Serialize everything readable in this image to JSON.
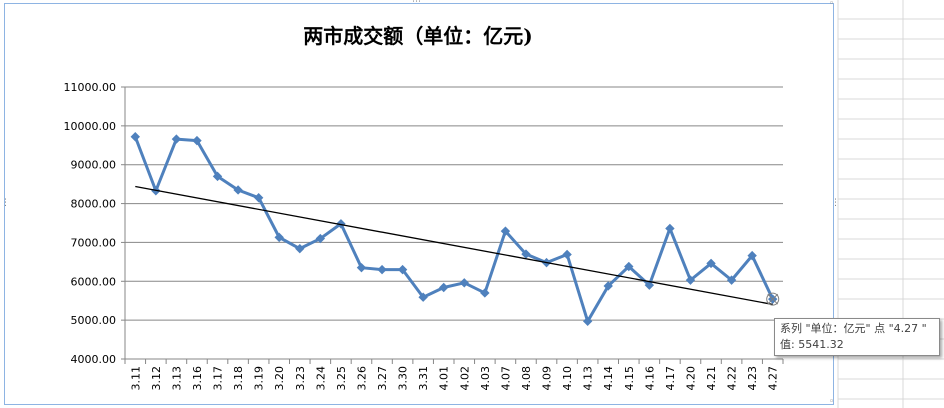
{
  "chart_data": {
    "type": "line",
    "title": "两市成交额（单位：亿元)",
    "xlabel": "",
    "ylabel": "",
    "ylim": [
      4000,
      11000
    ],
    "yticks": [
      "4000.00",
      "5000.00",
      "6000.00",
      "7000.00",
      "8000.00",
      "9000.00",
      "10000.00",
      "11000.00"
    ],
    "grid": true,
    "legend": "none",
    "categories": [
      "3.11",
      "3.12",
      "3.13",
      "3.16",
      "3.17",
      "3.18",
      "3.19",
      "3.20",
      "3.23",
      "3.24",
      "3.25",
      "3.26",
      "3.27",
      "3.30",
      "3.31",
      "4.01",
      "4.02",
      "4.03",
      "4.07",
      "4.08",
      "4.09",
      "4.10",
      "4.13",
      "4.14",
      "4.15",
      "4.16",
      "4.17",
      "4.20",
      "4.21",
      "4.22",
      "4.23",
      "4.27"
    ],
    "series": [
      {
        "name": "单位：亿元",
        "color": "#4f81bd",
        "values": [
          9720,
          8330,
          9660,
          9620,
          8700,
          8350,
          8150,
          7130,
          6840,
          7100,
          7480,
          6350,
          6300,
          6300,
          5590,
          5840,
          5960,
          5700,
          7290,
          6700,
          6480,
          6690,
          4970,
          5880,
          6380,
          5900,
          7360,
          6030,
          6460,
          6030,
          6660,
          5541.32
        ]
      }
    ],
    "trendline": {
      "type": "linear",
      "color": "#000000"
    },
    "tooltip": {
      "line1": "系列 \"单位：亿元\" 点 \"4.27 \"",
      "line2": "值: 5541.32"
    }
  }
}
